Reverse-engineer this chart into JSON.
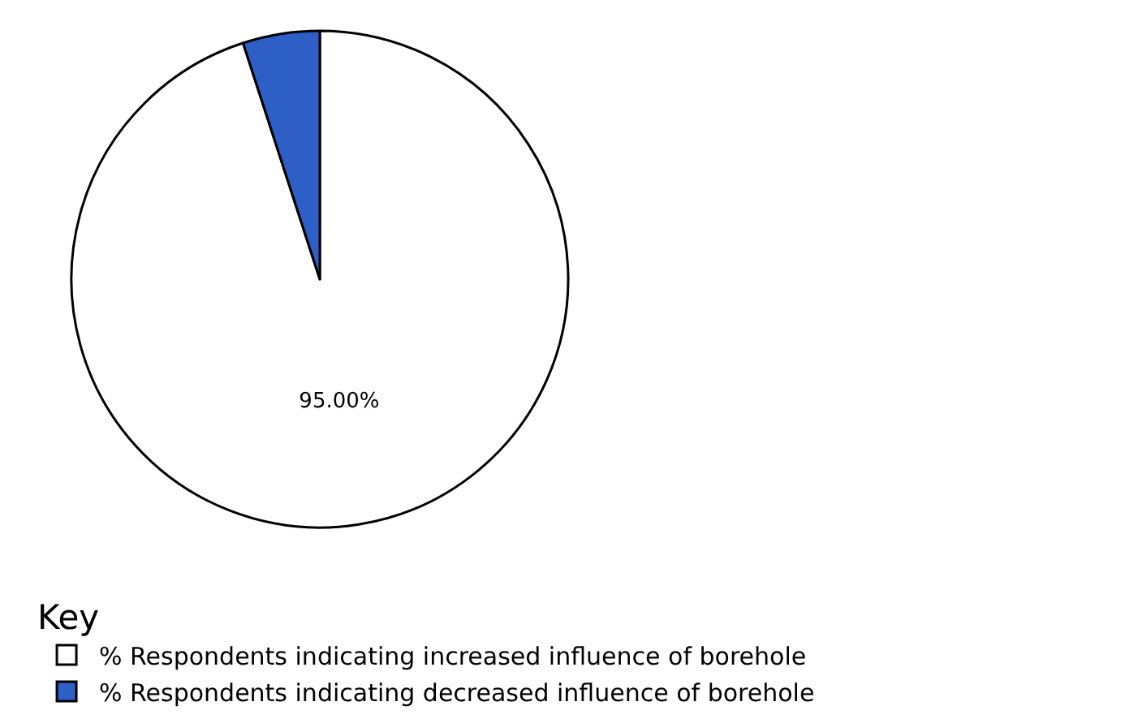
{
  "chart_data": {
    "type": "pie",
    "legend_title": "Key",
    "legend": "bottom",
    "categories": [
      "% Respondents indicating increased influence of borehole",
      "% Respondents indicating decreased influence of borehole"
    ],
    "values": [
      95,
      5
    ],
    "colors": [
      "#ffffff",
      "#2e5fc6"
    ],
    "value_labels": [
      "95.00%",
      null
    ]
  }
}
